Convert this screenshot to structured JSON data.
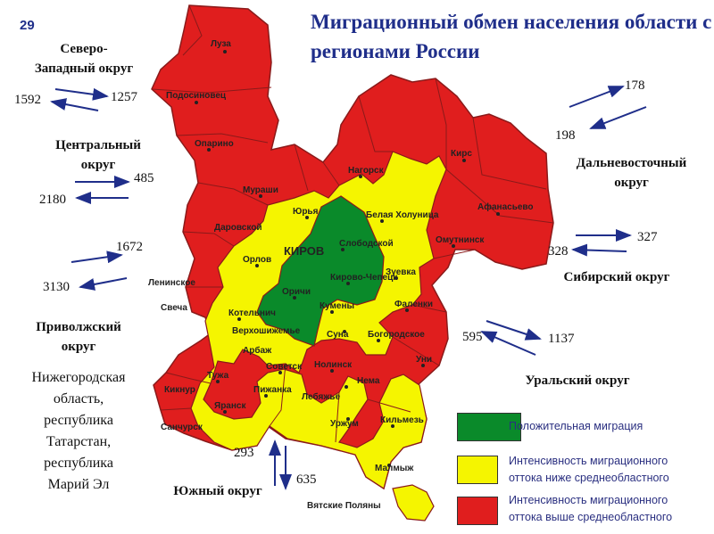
{
  "slide_number": "29",
  "title": "Миграционный обмен населения области с регионами России",
  "districts": [
    {
      "name_line1": "Северо-",
      "name_line2": "Западный округ",
      "inflow": "1257",
      "outflow": "1592"
    },
    {
      "name_line1": "Центральный",
      "name_line2": "округ",
      "inflow": "485",
      "outflow": "2180"
    },
    {
      "name_line1": "Приволжский",
      "name_line2": "округ",
      "inflow": "1672",
      "outflow": "3130"
    },
    {
      "name_line1": "Южный округ",
      "name_line2": "",
      "inflow": "293",
      "outflow": "635"
    },
    {
      "name_line1": "Уральский округ",
      "name_line2": "",
      "inflow": "595",
      "outflow": "1137"
    },
    {
      "name_line1": "Сибирский округ",
      "name_line2": "",
      "inflow": "327",
      "outflow": "328"
    },
    {
      "name_line1": "Дальневосточный",
      "name_line2": "округ",
      "inflow": "178",
      "outflow": "198"
    }
  ],
  "privolzhsky_note": [
    "Нижегородская",
    "область,",
    "республика",
    "Татарстан,",
    "республика",
    "Марий Эл"
  ],
  "map": {
    "capital": "КИРОВ",
    "towns": [
      "Луза",
      "Подосиновец",
      "Опарино",
      "Нагорск",
      "Кирс",
      "Афанасьево",
      "Омутнинск",
      "Мураши",
      "Юрья",
      "Белая Холуница",
      "Даровской",
      "Слободской",
      "Орлов",
      "Зуевка",
      "Кирово-Чепецк",
      "Ленинское",
      "Оричи",
      "Свеча",
      "Котельнич",
      "Кумены",
      "Фаленки",
      "Верхошижемье",
      "Суна",
      "Богородское",
      "Арбаж",
      "Советск",
      "Нолинск",
      "Уни",
      "Тужа",
      "Кикнур",
      "Пижанка",
      "Лебяжье",
      "Нема",
      "Яранск",
      "Санчурск",
      "Уржум",
      "Кильмезь",
      "Малмыж",
      "Вятские Поляны"
    ]
  },
  "legend": [
    {
      "label_line1": "Положительная миграция",
      "label_line2": "",
      "color": "#0a8a2a"
    },
    {
      "label_line1": "Интенсивность миграционного",
      "label_line2": "оттока ниже среднеобластного",
      "color": "#f5f500"
    },
    {
      "label_line1": "Интенсивность миграционного",
      "label_line2": "оттока выше среднеобластного",
      "color": "#e01e1e"
    }
  ],
  "colors": {
    "title": "#1f2e8a",
    "arrow": "#1f2e8a",
    "region_border": "#8a1a1a"
  }
}
